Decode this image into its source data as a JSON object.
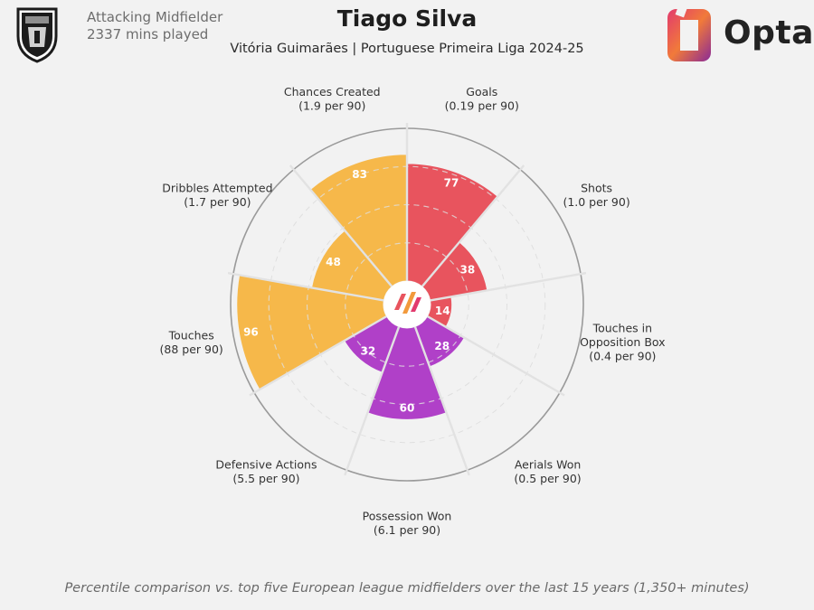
{
  "header": {
    "position": "Attacking Midfielder",
    "minutes": "2337 mins played",
    "player_name": "Tiago Silva",
    "subtitle": "Vitória Guimarães | Portuguese Primeira Liga 2024-25",
    "brand": "Opta"
  },
  "footnote": "Percentile comparison vs. top five European league midfielders over the last 15 years (1,350+ minutes)",
  "colors": {
    "attacking": "#e8545e",
    "possession": "#f6b84a",
    "defending": "#b040c8",
    "background": "#f2f2f2"
  },
  "chart_data": {
    "type": "polar-bar",
    "title": "Tiago Silva",
    "subtitle": "Vitória Guimarães | Portuguese Primeira Liga 2024-25",
    "rlim": [
      0,
      100
    ],
    "grid": true,
    "categories": [
      {
        "metric": "Goals",
        "per90": "(0.19 per 90)",
        "percentile": 77,
        "group": "attacking"
      },
      {
        "metric": "Shots",
        "per90": "(1.0 per 90)",
        "percentile": 38,
        "group": "attacking"
      },
      {
        "metric": "Touches in Opposition Box",
        "per90": "(0.4 per 90)",
        "percentile": 14,
        "group": "attacking"
      },
      {
        "metric": "Aerials Won",
        "per90": "(0.5 per 90)",
        "percentile": 28,
        "group": "defending"
      },
      {
        "metric": "Possession Won",
        "per90": "(6.1 per 90)",
        "percentile": 60,
        "group": "defending"
      },
      {
        "metric": "Defensive Actions",
        "per90": "(5.5 per 90)",
        "percentile": 32,
        "group": "defending"
      },
      {
        "metric": "Touches",
        "per90": "(88 per 90)",
        "percentile": 96,
        "group": "possession"
      },
      {
        "metric": "Dribbles Attempted",
        "per90": "(1.7 per 90)",
        "percentile": 48,
        "group": "possession"
      },
      {
        "metric": "Chances Created",
        "per90": "(1.9 per 90)",
        "percentile": 83,
        "group": "possession"
      }
    ]
  }
}
